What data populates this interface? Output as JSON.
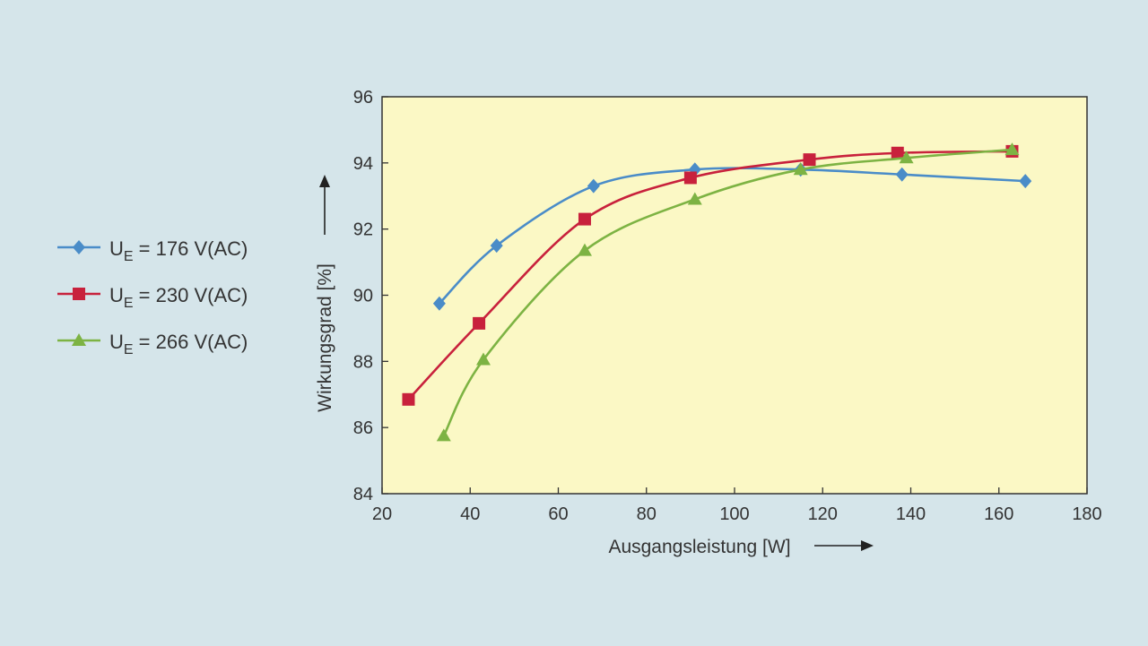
{
  "chart_data": {
    "type": "line",
    "title": "",
    "xlabel": "Ausgangsleistung [W]",
    "ylabel": "Wirkungsgrad [%]",
    "xlim": [
      20,
      180
    ],
    "ylim": [
      84,
      96
    ],
    "xticks": [
      20,
      40,
      60,
      80,
      100,
      120,
      140,
      160,
      180
    ],
    "yticks": [
      84,
      86,
      88,
      90,
      92,
      94,
      96
    ],
    "plot_background": "#fbf8c5",
    "grid": false,
    "legend_position": "left",
    "series": [
      {
        "name": "U_E = 176 V(AC)",
        "legend": {
          "main": "U",
          "sub": "E",
          "rest": " = 176  V(AC)"
        },
        "color": "#4a8cc8",
        "marker": "diamond",
        "x": [
          33,
          46,
          68,
          91,
          115,
          138,
          166
        ],
        "y": [
          89.75,
          91.5,
          93.3,
          93.8,
          93.8,
          93.65,
          93.45
        ]
      },
      {
        "name": "U_E = 230 V(AC)",
        "legend": {
          "main": "U",
          "sub": "E",
          "rest": " = 230 V(AC)"
        },
        "color": "#c8213c",
        "marker": "square",
        "x": [
          26,
          42,
          66,
          90,
          117,
          137,
          163
        ],
        "y": [
          86.85,
          89.15,
          92.3,
          93.55,
          94.1,
          94.3,
          94.35
        ]
      },
      {
        "name": "U_E = 266 V(AC)",
        "legend": {
          "main": "U",
          "sub": "E",
          "rest": " = 266 V(AC)"
        },
        "color": "#7db343",
        "marker": "triangle",
        "x": [
          34,
          43,
          66,
          91,
          115,
          139,
          163
        ],
        "y": [
          85.75,
          88.05,
          91.35,
          92.9,
          93.8,
          94.15,
          94.4
        ]
      }
    ]
  }
}
